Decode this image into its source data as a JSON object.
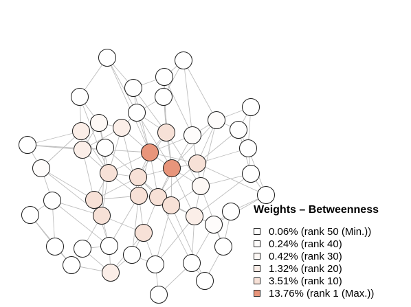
{
  "legend": {
    "title": "Weights – Betweenness",
    "items": [
      {
        "label": "0.06% (rank 50 (Min.))",
        "color": "#ffffff"
      },
      {
        "label": "0.24% (rank 40)",
        "color": "#fefcfb"
      },
      {
        "label": "0.42% (rank 30)",
        "color": "#fdf8f5"
      },
      {
        "label": "1.32% (rank 20)",
        "color": "#fbeee8"
      },
      {
        "label": "3.51% (rank 10)",
        "color": "#f7e1d7"
      },
      {
        "label": "13.76% (rank 1 (Max.))",
        "color": "#e8957b"
      }
    ]
  },
  "network": {
    "node_count": 50,
    "edge_color": "#bdbdbd",
    "node_border": "#1a1a1a"
  }
}
